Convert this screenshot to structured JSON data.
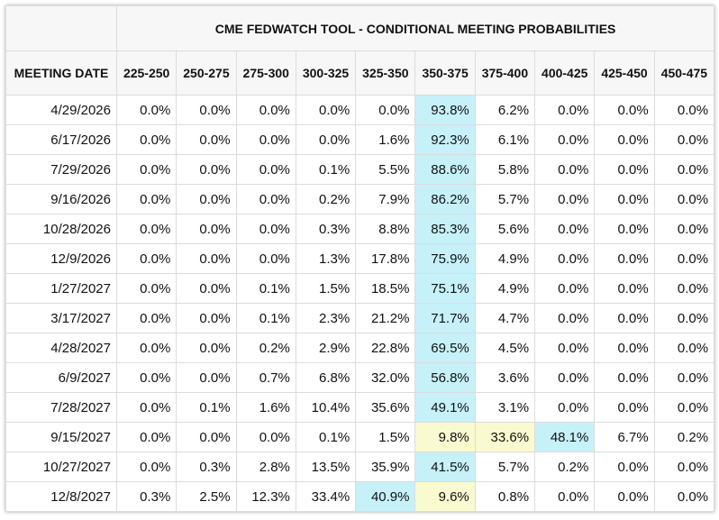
{
  "header": {
    "title": "CME FEDWATCH TOOL - CONDITIONAL MEETING PROBABILITIES"
  },
  "table": {
    "columns": [
      "MEETING DATE",
      "225-250",
      "250-275",
      "275-300",
      "300-325",
      "325-350",
      "350-375",
      "375-400",
      "400-425",
      "425-450",
      "450-475"
    ],
    "rows": [
      [
        "4/29/2026",
        "0.0%",
        "0.0%",
        "0.0%",
        "0.0%",
        "0.0%",
        "93.8%",
        "6.2%",
        "0.0%",
        "0.0%",
        "0.0%"
      ],
      [
        "6/17/2026",
        "0.0%",
        "0.0%",
        "0.0%",
        "0.0%",
        "1.6%",
        "92.3%",
        "6.1%",
        "0.0%",
        "0.0%",
        "0.0%"
      ],
      [
        "7/29/2026",
        "0.0%",
        "0.0%",
        "0.0%",
        "0.1%",
        "5.5%",
        "88.6%",
        "5.8%",
        "0.0%",
        "0.0%",
        "0.0%"
      ],
      [
        "9/16/2026",
        "0.0%",
        "0.0%",
        "0.0%",
        "0.2%",
        "7.9%",
        "86.2%",
        "5.7%",
        "0.0%",
        "0.0%",
        "0.0%"
      ],
      [
        "10/28/2026",
        "0.0%",
        "0.0%",
        "0.0%",
        "0.3%",
        "8.8%",
        "85.3%",
        "5.6%",
        "0.0%",
        "0.0%",
        "0.0%"
      ],
      [
        "12/9/2026",
        "0.0%",
        "0.0%",
        "0.0%",
        "1.3%",
        "17.8%",
        "75.9%",
        "4.9%",
        "0.0%",
        "0.0%",
        "0.0%"
      ],
      [
        "1/27/2027",
        "0.0%",
        "0.0%",
        "0.1%",
        "1.5%",
        "18.5%",
        "75.1%",
        "4.9%",
        "0.0%",
        "0.0%",
        "0.0%"
      ],
      [
        "3/17/2027",
        "0.0%",
        "0.0%",
        "0.1%",
        "2.3%",
        "21.2%",
        "71.7%",
        "4.7%",
        "0.0%",
        "0.0%",
        "0.0%"
      ],
      [
        "4/28/2027",
        "0.0%",
        "0.0%",
        "0.2%",
        "2.9%",
        "22.8%",
        "69.5%",
        "4.5%",
        "0.0%",
        "0.0%",
        "0.0%"
      ],
      [
        "6/9/2027",
        "0.0%",
        "0.0%",
        "0.7%",
        "6.8%",
        "32.0%",
        "56.8%",
        "3.6%",
        "0.0%",
        "0.0%",
        "0.0%"
      ],
      [
        "7/28/2027",
        "0.0%",
        "0.1%",
        "1.6%",
        "10.4%",
        "35.6%",
        "49.1%",
        "3.1%",
        "0.0%",
        "0.0%",
        "0.0%"
      ],
      [
        "9/15/2027",
        "0.0%",
        "0.0%",
        "0.0%",
        "0.1%",
        "1.5%",
        "9.8%",
        "33.6%",
        "48.1%",
        "6.7%",
        "0.2%"
      ],
      [
        "10/27/2027",
        "0.0%",
        "0.3%",
        "2.8%",
        "13.5%",
        "35.9%",
        "41.5%",
        "5.7%",
        "0.2%",
        "0.0%",
        "0.0%"
      ],
      [
        "12/8/2027",
        "0.3%",
        "2.5%",
        "12.3%",
        "33.4%",
        "40.9%",
        "9.6%",
        "0.8%",
        "0.0%",
        "0.0%",
        "0.0%"
      ]
    ]
  }
}
